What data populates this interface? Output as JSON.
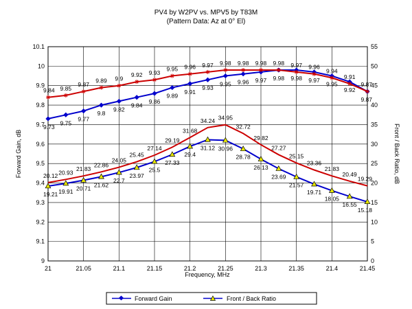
{
  "chart_data": {
    "type": "line",
    "title": "PV4 by W2PV vs. MPV5 by T83M",
    "subtitle": "(Pattern Data: Az at 0° El)",
    "xlabel": "Frequency, MHz",
    "ylabel_left": "Forward Gain, dB",
    "ylabel_right": "Front / Back Ratio, dB",
    "x": [
      21.0,
      21.025,
      21.05,
      21.075,
      21.1,
      21.125,
      21.15,
      21.175,
      21.2,
      21.225,
      21.25,
      21.275,
      21.3,
      21.325,
      21.35,
      21.375,
      21.4,
      21.425,
      21.45
    ],
    "x_ticks": [
      21,
      21.05,
      21.1,
      21.15,
      21.2,
      21.25,
      21.3,
      21.35,
      21.4,
      21.45
    ],
    "x_tick_labels": [
      "21",
      "21.05",
      "21.1",
      "21.15",
      "21.2",
      "21.25",
      "21.3",
      "21.35",
      "21.4",
      "21.45"
    ],
    "xlim": [
      21.0,
      21.45
    ],
    "ylim_left": [
      9.0,
      10.1
    ],
    "y_ticks_left": [
      "9",
      "9.1",
      "9.2",
      "9.3",
      "9.4",
      "9.5",
      "9.6",
      "9.7",
      "9.8",
      "9.9",
      "10",
      "10.1"
    ],
    "ylim_right": [
      0,
      55
    ],
    "y_ticks_right": [
      "0",
      "5",
      "10",
      "15",
      "20",
      "25",
      "30",
      "35",
      "40",
      "45",
      "50",
      "55"
    ],
    "grid": true,
    "legend_position": "bottom",
    "legend": [
      "Forward Gain",
      "Front / Back Ratio"
    ],
    "series": [
      {
        "name": "Forward Gain",
        "axis": "left",
        "color": "#0000cc",
        "marker": "diamond",
        "label_pos": "below",
        "values": [
          9.73,
          9.75,
          9.77,
          9.8,
          9.82,
          9.84,
          9.86,
          9.89,
          9.91,
          9.93,
          9.95,
          9.96,
          9.97,
          9.98,
          9.98,
          9.97,
          9.95,
          9.92,
          9.87
        ],
        "labels": [
          "9.73",
          "9.75",
          "9.77",
          "9.8",
          "9.82",
          "9.84",
          "9.86",
          "9.89",
          "9.91",
          "9.93",
          "9.95",
          "9.96",
          "9.97",
          "9.98",
          "9.98",
          "9.97",
          "9.95",
          "9.92",
          "9.87"
        ]
      },
      {
        "axis": "left",
        "color": "#cc0000",
        "marker": "star",
        "label_pos": "above",
        "values": [
          9.84,
          9.85,
          9.87,
          9.89,
          9.9,
          9.92,
          9.93,
          9.95,
          9.96,
          9.97,
          9.98,
          9.98,
          9.98,
          9.98,
          9.97,
          9.96,
          9.94,
          9.91,
          9.87
        ],
        "labels": [
          "9.84",
          "9.85",
          "9.87",
          "9.89",
          "9.9",
          "9.92",
          "9.93",
          "9.95",
          "9.96",
          "9.97",
          "9.98",
          "9.98",
          "9.98",
          "9.98",
          "9.97",
          "9.96",
          "9.94",
          "9.91",
          "9.87"
        ]
      },
      {
        "name": "Front / Back Ratio",
        "axis": "right",
        "color": "#0000cc",
        "marker": "triangle",
        "label_pos": "below",
        "values": [
          19.21,
          19.91,
          20.71,
          21.62,
          22.7,
          23.97,
          25.5,
          27.33,
          29.4,
          31.12,
          30.96,
          28.78,
          26.13,
          23.69,
          21.57,
          19.71,
          18.05,
          16.55,
          15.18
        ],
        "labels": [
          "19.21",
          "19.91",
          "20.71",
          "21.62",
          "22.7",
          "23.97",
          "25.5",
          "27.33",
          "29.4",
          "31.12",
          "30.96",
          "28.78",
          "26.13",
          "23.69",
          "21.57",
          "19.71",
          "18.05",
          "16.55",
          "15.18"
        ]
      },
      {
        "axis": "right",
        "color": "#cc0000",
        "marker": "none",
        "label_pos": "above",
        "values": [
          20.12,
          20.93,
          21.83,
          22.86,
          24.05,
          25.45,
          27.14,
          29.19,
          31.68,
          34.24,
          34.95,
          32.72,
          29.82,
          27.27,
          25.15,
          23.36,
          21.83,
          20.49,
          19.29
        ],
        "labels": [
          "20.12",
          "20.93",
          "21.83",
          "22.86",
          "24.05",
          "25.45",
          "27.14",
          "29.19",
          "31.68",
          "34.24",
          "34.95",
          "32.72",
          "29.82",
          "27.27",
          "25.15",
          "23.36",
          "21.83",
          "20.49",
          "19.29"
        ]
      }
    ]
  }
}
